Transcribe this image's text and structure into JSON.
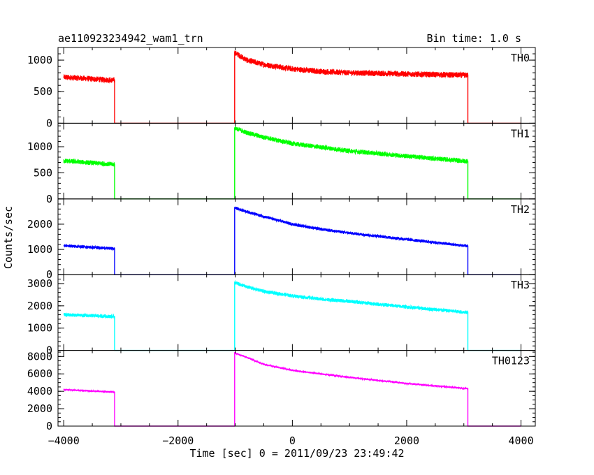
{
  "header": {
    "title": "ae110923234942_wam1_trn",
    "bin_time": "Bin time: 1.0 s"
  },
  "chart_data": {
    "type": "line",
    "xlabel": "Time [sec] 0 = 2011/09/23 23:49:42",
    "ylabel": "Counts/sec",
    "xlim": [
      -4100,
      4250
    ],
    "x_ticks": [
      -4000,
      -2000,
      0,
      2000,
      4000
    ],
    "x_tick_labels": [
      "−4000",
      "−2000",
      "0",
      "2000",
      "4000"
    ],
    "panels": [
      {
        "name": "TH0",
        "color": "#ff0000",
        "ylim": [
          0,
          1200
        ],
        "y_ticks": [
          0,
          500,
          1000
        ],
        "y_minor_step": 100,
        "noise": 90,
        "segments": [
          {
            "x": [
              -4000,
              -3110
            ],
            "y": [
              730,
              680
            ]
          },
          {
            "x": [
              -3110,
              -1010
            ],
            "y": [
              0,
              0
            ]
          },
          {
            "x": [
              -1010,
              -800,
              -500,
              0,
              500,
              1000,
              2000,
              3070
            ],
            "y": [
              1120,
              1000,
              930,
              860,
              820,
              800,
              780,
              760
            ]
          },
          {
            "x": [
              3070,
              4000
            ],
            "y": [
              0,
              0
            ]
          }
        ]
      },
      {
        "name": "TH1",
        "color": "#00ff00",
        "ylim": [
          0,
          1450
        ],
        "y_ticks": [
          0,
          500,
          1000
        ],
        "y_minor_step": 100,
        "noise": 90,
        "segments": [
          {
            "x": [
              -4000,
              -3110
            ],
            "y": [
              730,
              660
            ]
          },
          {
            "x": [
              -3110,
              -1010
            ],
            "y": [
              0,
              0
            ]
          },
          {
            "x": [
              -1010,
              -800,
              -500,
              0,
              500,
              1000,
              2000,
              3070
            ],
            "y": [
              1360,
              1270,
              1180,
              1060,
              990,
              920,
              820,
              720
            ]
          },
          {
            "x": [
              3070,
              4000
            ],
            "y": [
              0,
              0
            ]
          }
        ]
      },
      {
        "name": "TH2",
        "color": "#0000ff",
        "ylim": [
          0,
          3000
        ],
        "y_ticks": [
          0,
          1000,
          2000
        ],
        "y_minor_step": 200,
        "noise": 120,
        "segments": [
          {
            "x": [
              -4000,
              -3110
            ],
            "y": [
              1150,
              1030
            ]
          },
          {
            "x": [
              -3110,
              -1010
            ],
            "y": [
              0,
              0
            ]
          },
          {
            "x": [
              -1010,
              -800,
              -500,
              0,
              500,
              1000,
              2000,
              3070
            ],
            "y": [
              2650,
              2500,
              2300,
              2000,
              1800,
              1650,
              1400,
              1130
            ]
          },
          {
            "x": [
              3070,
              4000
            ],
            "y": [
              0,
              0
            ]
          }
        ]
      },
      {
        "name": "TH3",
        "color": "#00ffff",
        "ylim": [
          0,
          3400
        ],
        "y_ticks": [
          0,
          1000,
          2000,
          3000
        ],
        "y_minor_step": 200,
        "noise": 160,
        "segments": [
          {
            "x": [
              -4000,
              -3110
            ],
            "y": [
              1600,
              1520
            ]
          },
          {
            "x": [
              -3110,
              -1010
            ],
            "y": [
              0,
              0
            ]
          },
          {
            "x": [
              -1010,
              -800,
              -500,
              0,
              500,
              1000,
              2000,
              3070
            ],
            "y": [
              3050,
              2850,
              2650,
              2450,
              2300,
              2200,
              1950,
              1700
            ]
          },
          {
            "x": [
              3070,
              4000
            ],
            "y": [
              0,
              0
            ]
          }
        ]
      },
      {
        "name": "TH0123",
        "color": "#ff00ff",
        "ylim": [
          0,
          8700
        ],
        "y_ticks": [
          0,
          2000,
          4000,
          6000,
          8000
        ],
        "y_minor_step": 500,
        "noise": 200,
        "segments": [
          {
            "x": [
              -4000,
              -3110
            ],
            "y": [
              4200,
              3900
            ]
          },
          {
            "x": [
              -3110,
              -1010
            ],
            "y": [
              0,
              0
            ]
          },
          {
            "x": [
              -1010,
              -800,
              -500,
              0,
              500,
              1000,
              2000,
              3070
            ],
            "y": [
              8400,
              7900,
              7100,
              6400,
              6000,
              5600,
              4900,
              4300
            ]
          },
          {
            "x": [
              3070,
              4000
            ],
            "y": [
              0,
              0
            ]
          }
        ]
      }
    ]
  }
}
